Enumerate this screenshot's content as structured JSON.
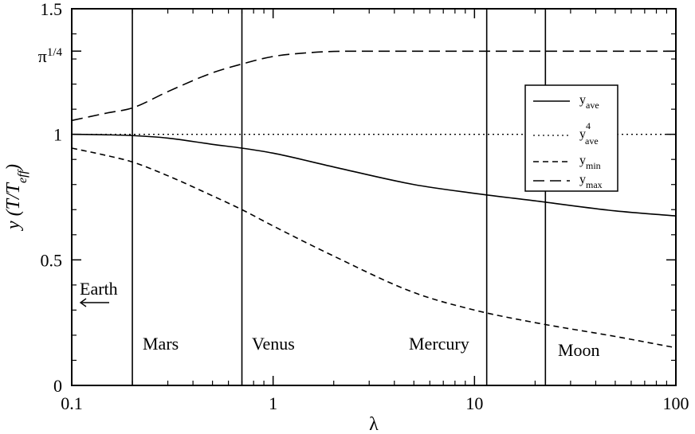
{
  "chart_data": {
    "type": "line",
    "x_scale": "log",
    "xlim": [
      0.1,
      100
    ],
    "ylim": [
      0,
      1.5
    ],
    "xlabel": "λ",
    "ylabel": "y (T/T_eff)",
    "x_ticks": [
      {
        "value": 0.1,
        "label": "0.1"
      },
      {
        "value": 1,
        "label": "1"
      },
      {
        "value": 10,
        "label": "10"
      },
      {
        "value": 100,
        "label": "100"
      }
    ],
    "y_ticks": [
      {
        "value": 0,
        "label": "0"
      },
      {
        "value": 0.5,
        "label": "0.5"
      },
      {
        "value": 1,
        "label": "1"
      },
      {
        "value": 1.3313,
        "label": "π^(1/4)"
      },
      {
        "value": 1.5,
        "label": "1.5"
      }
    ],
    "series": [
      {
        "name": "y_ave",
        "style": "solid",
        "x": [
          0.1,
          0.15,
          0.2,
          0.3,
          0.5,
          0.7,
          1,
          2,
          5,
          10,
          20,
          50,
          100
        ],
        "y": [
          1.0,
          0.998,
          0.995,
          0.985,
          0.96,
          0.945,
          0.925,
          0.87,
          0.8,
          0.765,
          0.735,
          0.695,
          0.675
        ]
      },
      {
        "name": "y_ave^4",
        "style": "dotted",
        "x": [
          0.1,
          100
        ],
        "y": [
          1.0,
          1.0
        ]
      },
      {
        "name": "y_min",
        "style": "dashed",
        "x": [
          0.1,
          0.15,
          0.2,
          0.3,
          0.5,
          0.7,
          1,
          2,
          5,
          10,
          20,
          50,
          100
        ],
        "y": [
          0.945,
          0.915,
          0.89,
          0.835,
          0.755,
          0.7,
          0.635,
          0.515,
          0.37,
          0.3,
          0.25,
          0.195,
          0.15
        ]
      },
      {
        "name": "y_max",
        "style": "longdash",
        "x": [
          0.1,
          0.15,
          0.2,
          0.3,
          0.5,
          0.7,
          1,
          1.5,
          2,
          3,
          5,
          10,
          100
        ],
        "y": [
          1.055,
          1.085,
          1.105,
          1.17,
          1.245,
          1.28,
          1.31,
          1.325,
          1.33,
          1.331,
          1.331,
          1.331,
          1.331
        ]
      }
    ],
    "vlines": [
      {
        "x": 0.2,
        "label": "Mars"
      },
      {
        "x": 0.7,
        "label": "Venus"
      },
      {
        "x": 11.5,
        "label": "Mercury"
      },
      {
        "x": 22.5,
        "label": "Moon"
      }
    ],
    "earth_label": "Earth",
    "legend": {
      "placement": "right",
      "entries": [
        {
          "base": "y",
          "sup": "",
          "sub": "ave",
          "style": "solid"
        },
        {
          "base": "y",
          "sup": "4",
          "sub": "ave",
          "style": "dotted"
        },
        {
          "base": "y",
          "sup": "",
          "sub": "min",
          "style": "dashed"
        },
        {
          "base": "y",
          "sup": "",
          "sub": "max",
          "style": "longdash"
        }
      ]
    },
    "grid": false
  }
}
